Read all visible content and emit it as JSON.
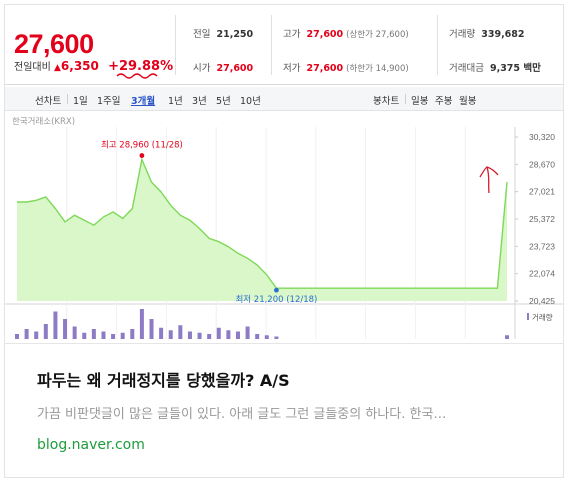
{
  "quote": {
    "price": "27,600",
    "change_label": "전일대비",
    "change_arrow": "▲",
    "change_amount": "6,350",
    "change_percent": "+29.88%",
    "stats": {
      "prev": {
        "label": "전일",
        "value": "21,250"
      },
      "open": {
        "label": "시가",
        "value": "27,600"
      },
      "high": {
        "label": "고가",
        "value": "27,600",
        "sub": "(상한가 27,600)"
      },
      "low": {
        "label": "저가",
        "value": "27,600",
        "sub": "(하한가 14,900)"
      },
      "volume": {
        "label": "거래량",
        "value": "339,682"
      },
      "amount": {
        "label": "거래대금",
        "value": "9,375 백만"
      }
    }
  },
  "tabs": {
    "line": "선차트",
    "d1": "1일",
    "w1": "1주일",
    "m3": "3개월",
    "y1": "1년",
    "y3": "3년",
    "y5": "5년",
    "y10": "10년",
    "candle": "봉차트",
    "daily": "일봉",
    "weekly": "주봉",
    "monthly": "월봉"
  },
  "source": "한국거래소(KRX)",
  "chart_data": {
    "type": "area",
    "y_ticks": [
      "30,320",
      "28,670",
      "27,021",
      "25,372",
      "23,723",
      "22,074",
      "20,425"
    ],
    "ylim": [
      20425,
      30320
    ],
    "annotations": {
      "high": "최고 28,960 (11/28)",
      "low": "최저 21,200 (12/18)"
    },
    "volume_label": "거래량",
    "series": [
      {
        "values": [
          26400,
          26400,
          26500,
          26700,
          26000,
          25200,
          25600,
          25300,
          25000,
          25500,
          25800,
          25400,
          26000,
          28960,
          27600,
          27000,
          26200,
          25600,
          25300,
          24800,
          24200,
          24000,
          23700,
          23300,
          23000,
          22600,
          22000,
          21200,
          21200,
          21200,
          21200,
          21200,
          21200,
          21200,
          21200,
          21200,
          21200,
          21200,
          21200,
          21200,
          21200,
          21200,
          21200,
          21200,
          21200,
          21200,
          21200,
          21200,
          21200,
          21200,
          21200,
          27600
        ]
      }
    ],
    "volume": [
      4,
      8,
      6,
      12,
      22,
      16,
      10,
      5,
      8,
      6,
      4,
      5,
      8,
      24,
      16,
      9,
      7,
      11,
      6,
      5,
      4,
      9,
      7,
      6,
      10,
      4,
      3,
      2,
      0,
      0,
      0,
      0,
      0,
      0,
      0,
      0,
      0,
      0,
      0,
      0,
      0,
      0,
      0,
      0,
      0,
      0,
      0,
      0,
      0,
      0,
      0,
      3
    ]
  },
  "result": {
    "title": "파두는 왜 거래정지를 당했을까? A/S",
    "description": "가끔 비판댓글이 많은 글들이 있다. 아래 글도 그런 글들중의 하나다. 한국…",
    "url": "blog.naver.com"
  },
  "colors": {
    "up": "#e2001a",
    "line": "#7ed957",
    "fill": "#d9f7c8",
    "volume": "#8e7bc6",
    "link": "#1e9c3b",
    "active_tab": "#2c56c7"
  }
}
